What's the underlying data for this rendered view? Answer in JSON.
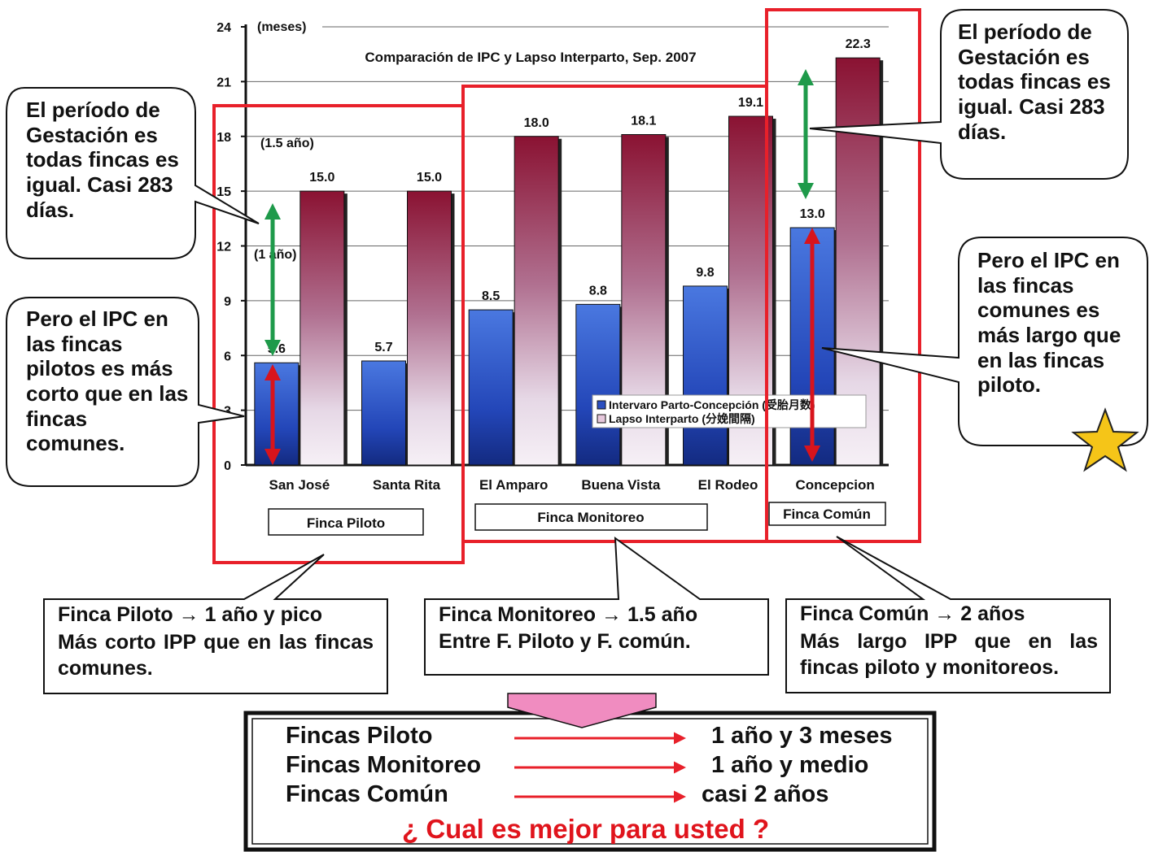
{
  "chart_data": {
    "type": "bar",
    "title": "Comparación de IPC y Lapso Interparto, Sep. 2007",
    "ylabel": "(meses)",
    "ylim": [
      0,
      24
    ],
    "yticks": [
      0,
      3,
      6,
      9,
      12,
      15,
      18,
      21,
      24
    ],
    "grid": true,
    "categories": [
      "San José",
      "Santa Rita",
      "El Amparo",
      "Buena Vista",
      "El Rodeo",
      "Concepcion"
    ],
    "series": [
      {
        "name": "Intervaro Parto-Concepción (受胎月数)",
        "color": "#2b4fc0",
        "values": [
          5.6,
          5.7,
          8.5,
          8.8,
          9.8,
          13.0
        ]
      },
      {
        "name": "Lapso Interparto (分娩間隔)",
        "color": "#8e1a3c",
        "values": [
          15.0,
          15.0,
          18.0,
          18.1,
          19.1,
          22.3
        ]
      }
    ],
    "value_labels": [
      [
        "5.6",
        "5.7",
        "8.5",
        "8.8",
        "9.8",
        "13.0"
      ],
      [
        "15.0",
        "15.0",
        "18.0",
        "18.1",
        "19.1",
        "22.3"
      ]
    ],
    "legend_position": "inside-bottom-right",
    "annotations": {
      "one_half_year": "(1.5 año)",
      "one_year": "(1 año)"
    },
    "groups": [
      {
        "label": "Finca Piloto",
        "members": [
          "San José",
          "Santa Rita"
        ]
      },
      {
        "label": "Finca Monitoreo",
        "members": [
          "El Amparo",
          "Buena Vista",
          "El Rodeo"
        ]
      },
      {
        "label": "Finca Común",
        "members": [
          "Concepcion"
        ]
      }
    ]
  },
  "callouts": {
    "left_top": "El período de Gestación es todas fincas es igual. Casi 283 días.",
    "left_bottom": "Pero el IPC en las fincas pilotos es más corto que en las fincas comunes.",
    "right_top": "El período de Gestación es todas fincas es igual. Casi 283 días.",
    "right_bottom": "Pero el IPC en las fincas comunes es más largo que en las fincas piloto."
  },
  "notes": {
    "piloto": [
      "Finca Piloto → 1 año y pico",
      "Más corto IPP que en las fincas comunes."
    ],
    "monitoreo": [
      "Finca Monitoreo → 1.5 año",
      "Entre F. Piloto y F. común."
    ],
    "comun": [
      "Finca Común → 2 años",
      "Más largo IPP que en las fincas piloto y monitoreos."
    ]
  },
  "summary": {
    "rows": [
      {
        "label": "Fincas Piloto",
        "value": "1 año y 3 meses"
      },
      {
        "label": "Fincas Monitoreo",
        "value": "1 año y medio"
      },
      {
        "label": "Fincas Común",
        "value": "casi 2 años"
      }
    ],
    "question": "¿ Cual es mejor para usted ?"
  },
  "colors": {
    "frame_red": "#e8202a",
    "arrow_green": "#1e9a4a",
    "arrow_red": "#d8141c",
    "summary_pink": "#f08cc0",
    "star": "#f5c518",
    "question_red": "#e0141c"
  }
}
